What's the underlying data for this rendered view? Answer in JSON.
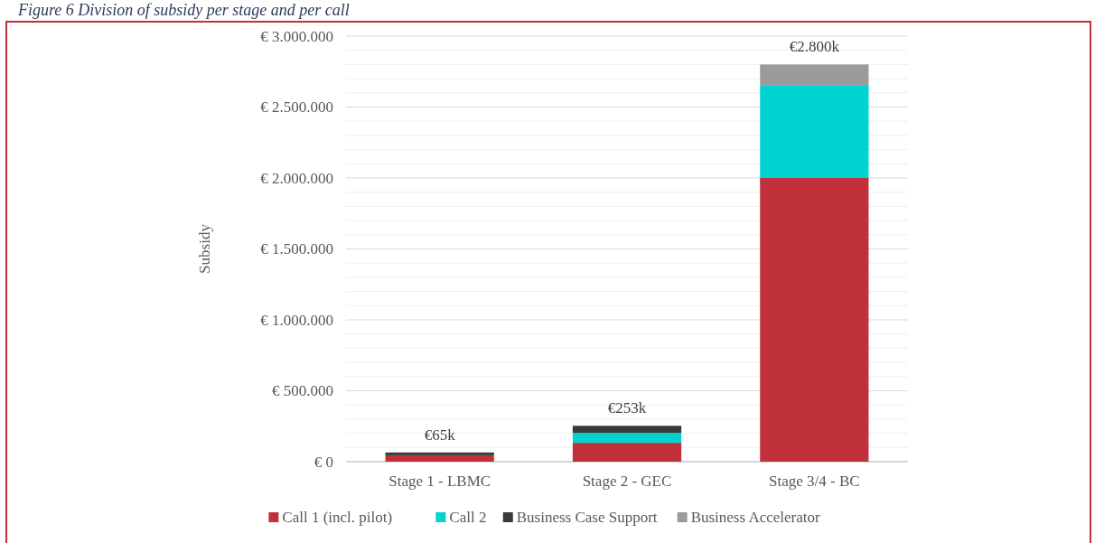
{
  "chart_data": {
    "type": "bar",
    "title": "Figure 6 Division of subsidy per stage and per call",
    "ylabel": "Subsidy",
    "categories": [
      "Stage 1 - LBMC",
      "Stage 2 - GEC",
      "Stage 3/4 - BC"
    ],
    "stacked": true,
    "series": [
      {
        "name": "Call 1 (incl. pilot)",
        "color": "#c1313b",
        "values": [
          45000,
          133000,
          2000000
        ]
      },
      {
        "name": "Call 2",
        "color": "#00d4d0",
        "values": [
          0,
          70000,
          650000
        ]
      },
      {
        "name": "Business Case Support",
        "color": "#3a3a3a",
        "values": [
          20000,
          50000,
          0
        ]
      },
      {
        "name": "Business Accelerator",
        "color": "#9b9b9b",
        "values": [
          0,
          0,
          150000
        ]
      }
    ],
    "totals": [
      "€65k",
      "€253k",
      "€2.800k"
    ],
    "ylim": [
      0,
      3000000
    ],
    "yticks": [
      {
        "value": 0,
        "label": "€ 0"
      },
      {
        "value": 100000,
        "label": null
      },
      {
        "value": 200000,
        "label": null
      },
      {
        "value": 300000,
        "label": null
      },
      {
        "value": 400000,
        "label": null
      },
      {
        "value": 500000,
        "label": "€ 500.000"
      },
      {
        "value": 600000,
        "label": null
      },
      {
        "value": 700000,
        "label": null
      },
      {
        "value": 800000,
        "label": null
      },
      {
        "value": 900000,
        "label": null
      },
      {
        "value": 1000000,
        "label": "€ 1.000.000"
      },
      {
        "value": 1100000,
        "label": null
      },
      {
        "value": 1200000,
        "label": null
      },
      {
        "value": 1300000,
        "label": null
      },
      {
        "value": 1400000,
        "label": null
      },
      {
        "value": 1500000,
        "label": "€ 1.500.000"
      },
      {
        "value": 1600000,
        "label": null
      },
      {
        "value": 1700000,
        "label": null
      },
      {
        "value": 1800000,
        "label": null
      },
      {
        "value": 1900000,
        "label": null
      },
      {
        "value": 2000000,
        "label": "€ 2.000.000"
      },
      {
        "value": 2100000,
        "label": null
      },
      {
        "value": 2200000,
        "label": null
      },
      {
        "value": 2300000,
        "label": null
      },
      {
        "value": 2400000,
        "label": null
      },
      {
        "value": 2500000,
        "label": "€ 2.500.000"
      },
      {
        "value": 2600000,
        "label": null
      },
      {
        "value": 2700000,
        "label": null
      },
      {
        "value": 2800000,
        "label": null
      },
      {
        "value": 2900000,
        "label": null
      },
      {
        "value": 3000000,
        "label": "€ 3.000.000"
      }
    ],
    "grid": "y",
    "legend": "bottom"
  }
}
